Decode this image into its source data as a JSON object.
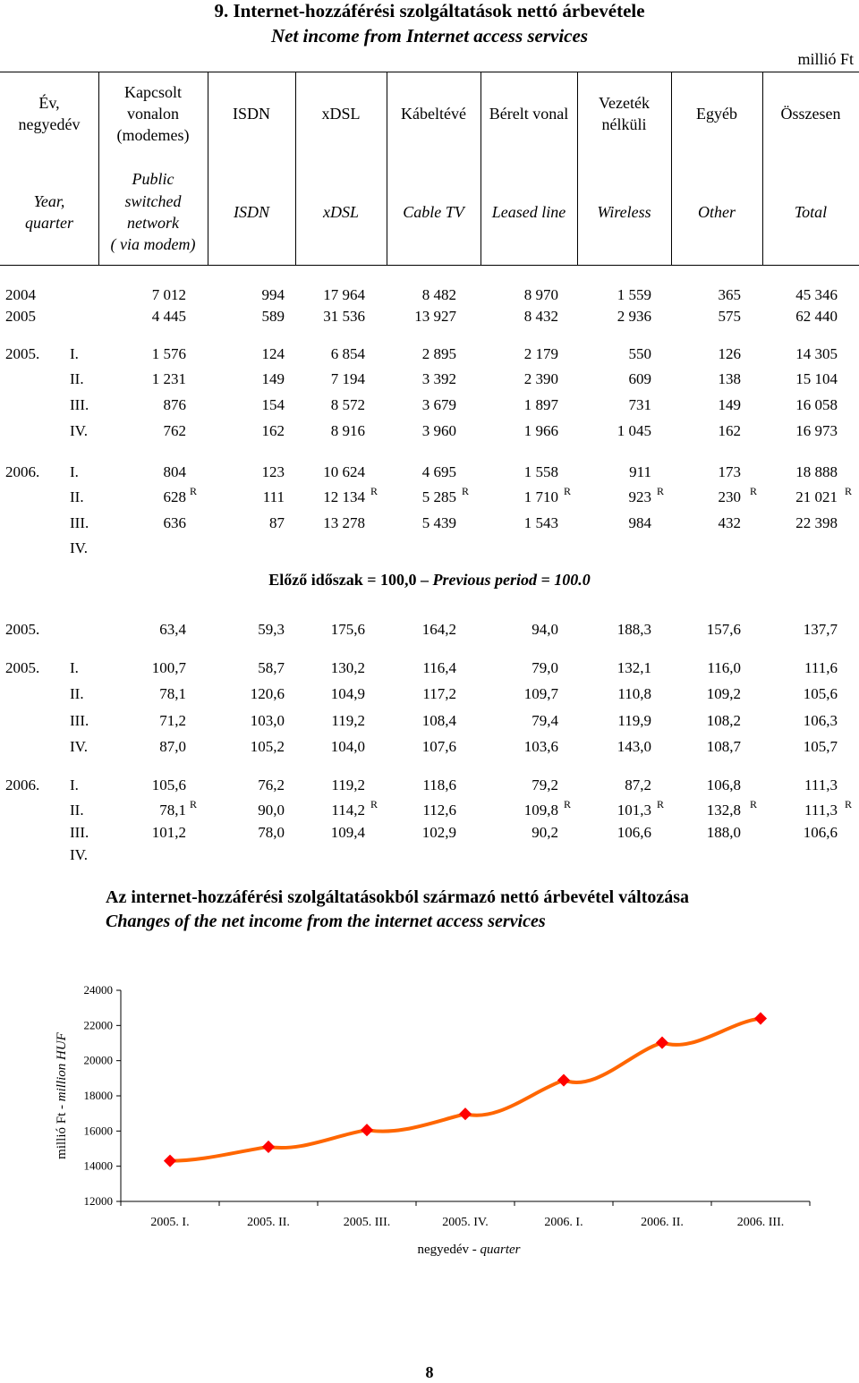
{
  "title_hu": "9. Internet-hozzáférési szolgáltatások nettó árbevétele",
  "title_en": "Net income from Internet access services",
  "unit": "millió Ft",
  "headers_hu": [
    "Év,\nnegyedév",
    "Kapcsolt\nvonalon\n(modemes)",
    "ISDN",
    "xDSL",
    "Kábeltévé",
    "Bérelt vonal",
    "Vezeték\nnélküli",
    "Egyéb",
    "Összesen"
  ],
  "headers_en": [
    "Year,\nquarter",
    "Public\nswitched\nnetwork\n( via modem)",
    "ISDN",
    "xDSL",
    "Cable TV",
    "Leased line",
    "Wireless",
    "Other",
    "Total"
  ],
  "annual": [
    {
      "year": "2004",
      "values": [
        "7 012",
        "994",
        "17 964",
        "8 482",
        "8 970",
        "1 559",
        "365",
        "45 346"
      ]
    },
    {
      "year": "2005",
      "values": [
        "4 445",
        "589",
        "31 536",
        "13 927",
        "8 432",
        "2 936",
        "575",
        "62 440"
      ]
    }
  ],
  "quarterly": [
    {
      "year": "2005.",
      "q": "I.",
      "values": [
        "1 576",
        "124",
        "6 854",
        "2 895",
        "2 179",
        "550",
        "126",
        "14 305"
      ],
      "r": []
    },
    {
      "year": "",
      "q": "II.",
      "values": [
        "1 231",
        "149",
        "7 194",
        "3 392",
        "2 390",
        "609",
        "138",
        "15 104"
      ],
      "r": []
    },
    {
      "year": "",
      "q": "III.",
      "values": [
        "876",
        "154",
        "8 572",
        "3 679",
        "1 897",
        "731",
        "149",
        "16 058"
      ],
      "r": []
    },
    {
      "year": "",
      "q": "IV.",
      "values": [
        "762",
        "162",
        "8 916",
        "3 960",
        "1 966",
        "1 045",
        "162",
        "16 973"
      ],
      "r": []
    },
    {
      "year": "2006.",
      "q": "I.",
      "values": [
        "804",
        "123",
        "10 624",
        "4 695",
        "1 558",
        "911",
        "173",
        "18 888"
      ],
      "r": []
    },
    {
      "year": "",
      "q": "II.",
      "values": [
        "628",
        "111",
        "12 134",
        "5 285",
        "1 710",
        "923",
        "230",
        "21 021"
      ],
      "r": [
        0,
        2,
        3,
        4,
        5,
        6,
        7
      ]
    },
    {
      "year": "",
      "q": "III.",
      "values": [
        "636",
        "87",
        "13 278",
        "5 439",
        "1 543",
        "984",
        "432",
        "22 398"
      ],
      "r": []
    },
    {
      "year": "",
      "q": "IV.",
      "values": [
        "",
        "",
        "",
        "",
        "",
        "",
        "",
        ""
      ],
      "r": []
    }
  ],
  "r_mark": "R",
  "prev_period_hu": "Előző időszak = 100,0",
  "prev_period_en": "Previous period = 100.0",
  "index_annual": [
    {
      "year": "2005.",
      "values": [
        "63,4",
        "59,3",
        "175,6",
        "164,2",
        "94,0",
        "188,3",
        "157,6",
        "137,7"
      ]
    }
  ],
  "index_quarterly": [
    {
      "year": "2005.",
      "q": "I.",
      "values": [
        "100,7",
        "58,7",
        "130,2",
        "116,4",
        "79,0",
        "132,1",
        "116,0",
        "111,6"
      ],
      "r": []
    },
    {
      "year": "",
      "q": "II.",
      "values": [
        "78,1",
        "120,6",
        "104,9",
        "117,2",
        "109,7",
        "110,8",
        "109,2",
        "105,6"
      ],
      "r": []
    },
    {
      "year": "",
      "q": "III.",
      "values": [
        "71,2",
        "103,0",
        "119,2",
        "108,4",
        "79,4",
        "119,9",
        "108,2",
        "106,3"
      ],
      "r": []
    },
    {
      "year": "",
      "q": "IV.",
      "values": [
        "87,0",
        "105,2",
        "104,0",
        "107,6",
        "103,6",
        "143,0",
        "108,7",
        "105,7"
      ],
      "r": []
    },
    {
      "year": "2006.",
      "q": "I.",
      "values": [
        "105,6",
        "76,2",
        "119,2",
        "118,6",
        "79,2",
        "87,2",
        "106,8",
        "111,3"
      ],
      "r": []
    },
    {
      "year": "",
      "q": "II.",
      "values": [
        "78,1",
        "90,0",
        "114,2",
        "112,6",
        "109,8",
        "101,3",
        "132,8",
        "111,3"
      ],
      "r": [
        0,
        2,
        4,
        5,
        6,
        7
      ]
    },
    {
      "year": "",
      "q": "III.",
      "values": [
        "101,2",
        "78,0",
        "109,4",
        "102,9",
        "90,2",
        "106,6",
        "188,0",
        "106,6"
      ],
      "r": []
    },
    {
      "year": "",
      "q": "IV.",
      "values": [
        "",
        "",
        "",
        "",
        "",
        "",
        "",
        ""
      ],
      "r": []
    }
  ],
  "chart_title_hu": "Az internet-hozzáférési szolgáltatásokból származó nettó árbevétel változása",
  "chart_title_en": "Changes of the net income from the internet access services",
  "chart_data": {
    "type": "line",
    "categories": [
      "2005. I.",
      "2005. II.",
      "2005. III.",
      "2005. IV.",
      "2006. I.",
      "2006. II.",
      "2006. III."
    ],
    "values": [
      14305,
      15104,
      16058,
      16973,
      18888,
      21021,
      22398
    ],
    "ylim": [
      12000,
      24000
    ],
    "yticks": [
      "12000",
      "14000",
      "16000",
      "18000",
      "20000",
      "22000",
      "24000"
    ],
    "ylabel_hu": "millió Ft - ",
    "ylabel_en": "million HUF",
    "xlabel_hu": "negyedév - ",
    "xlabel_en": "quarter",
    "line_color": "#ff6600",
    "marker_color": "#ff0000",
    "grid": false
  },
  "page_number": "8"
}
